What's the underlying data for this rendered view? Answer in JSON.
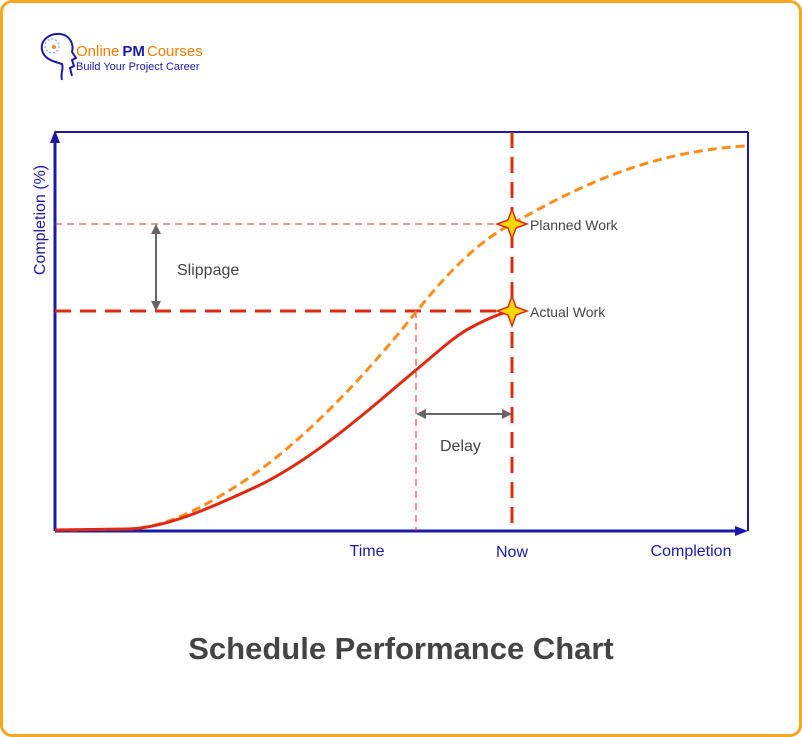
{
  "logo": {
    "brand_part1": "Online",
    "brand_part2": "PM",
    "brand_part3": "Courses",
    "tagline": "Build Your Project Career"
  },
  "chart": {
    "title": "Schedule Performance Chart",
    "y_axis_label": "Completion (%)",
    "x_labels": {
      "time": "Time",
      "now": "Now",
      "completion": "Completion"
    },
    "annotations": {
      "planned": "Planned Work",
      "actual": "Actual Work",
      "slippage": "Slippage",
      "delay": "Delay"
    },
    "colors": {
      "axis": "#1a1aa6",
      "planned": "#ff8c1a",
      "actual": "#dd2a10",
      "marker_fill": "#ffd700",
      "arrow": "#666666",
      "frame": "#f5a623"
    }
  }
}
